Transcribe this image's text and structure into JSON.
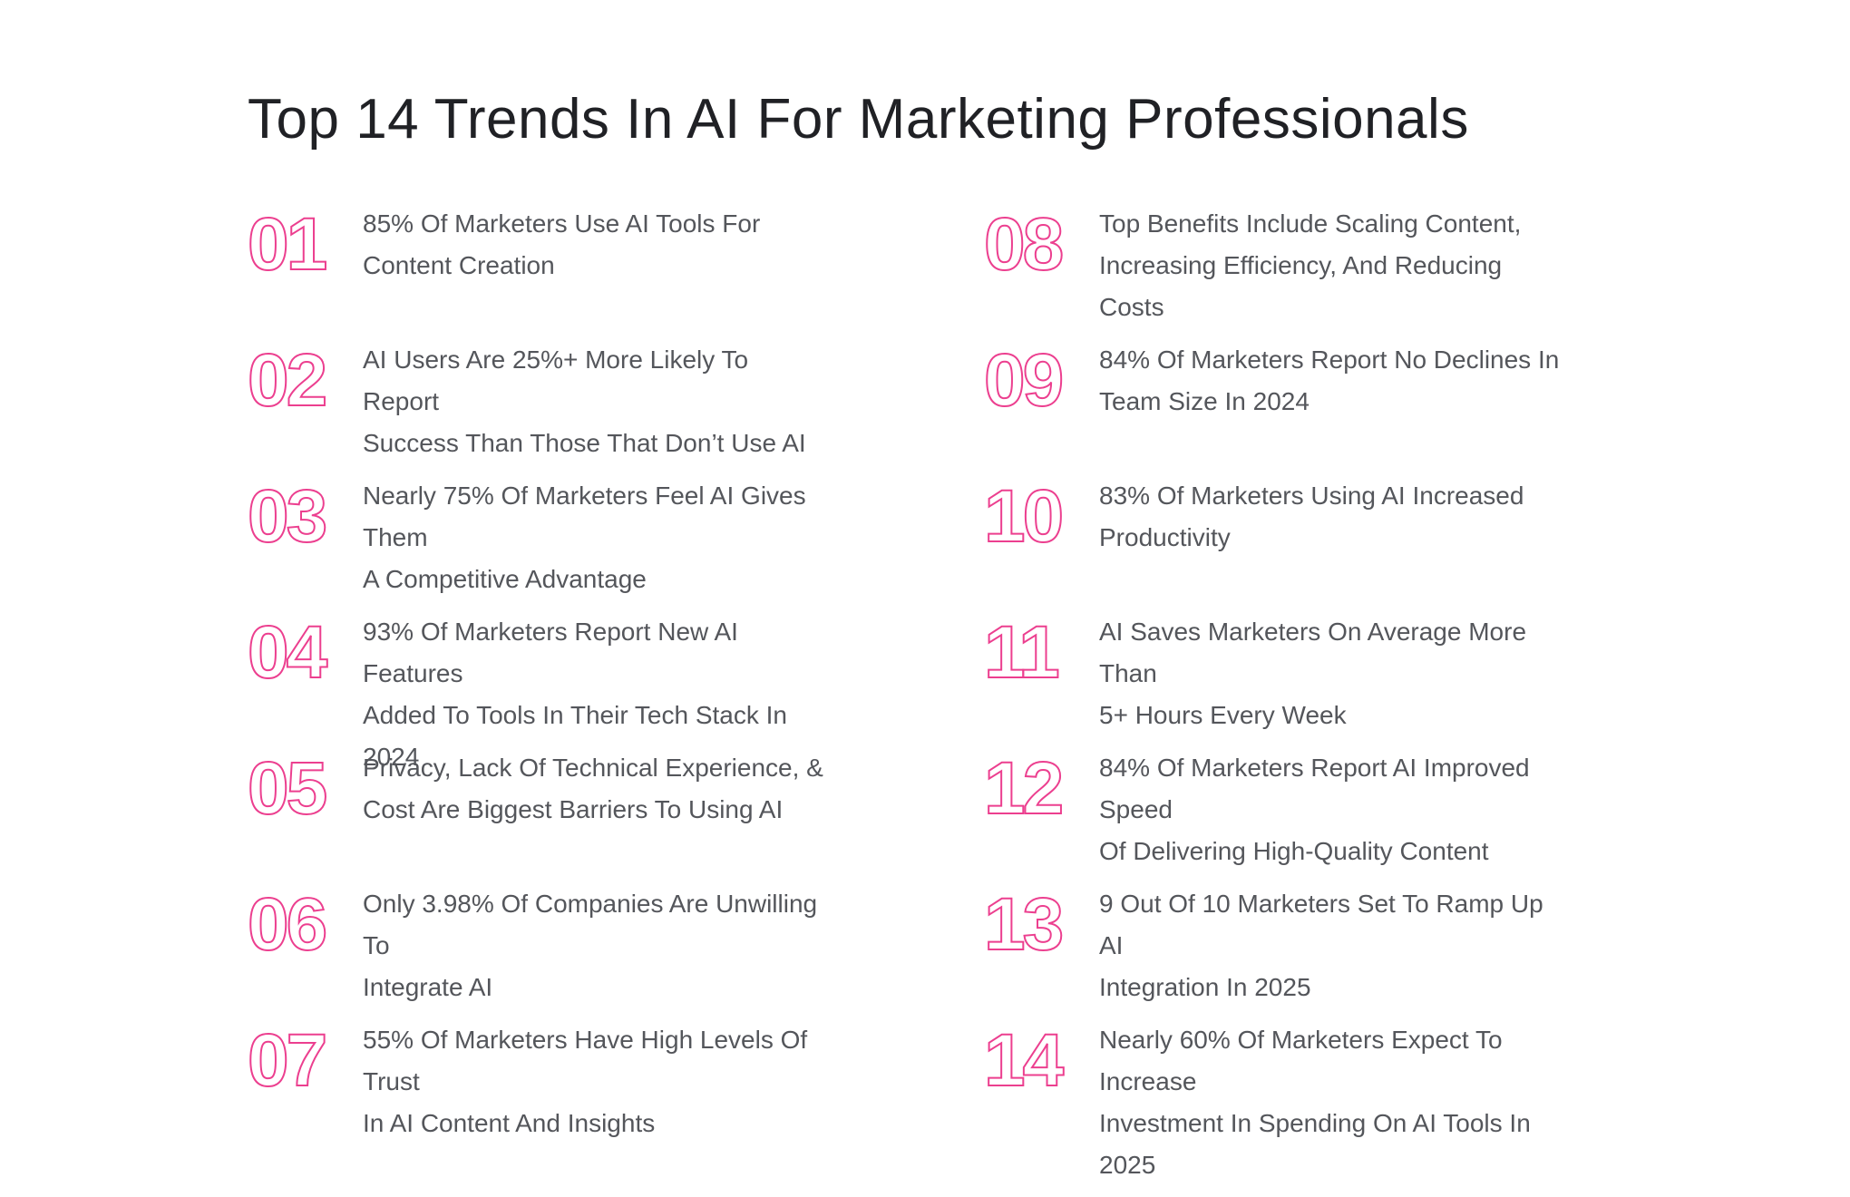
{
  "page": {
    "background": "#FFFFFF",
    "accent": "#EC3F8F",
    "body_text_color": "#54565B",
    "title_color": "#202125"
  },
  "title": "Top 14 Trends In AI For Marketing Professionals",
  "items": [
    {
      "number": "01",
      "line1": "85% Of Marketers Use AI Tools For",
      "line2": "Content Creation"
    },
    {
      "number": "02",
      "line1": "AI Users Are 25%+ More Likely To Report",
      "line2": "Success Than Those That Don’t Use AI"
    },
    {
      "number": "03",
      "line1": "Nearly 75% Of Marketers Feel AI Gives Them",
      "line2": "A Competitive Advantage"
    },
    {
      "number": "04",
      "line1": "93% Of Marketers Report New AI Features",
      "line2": "Added To Tools In Their Tech Stack In 2024"
    },
    {
      "number": "05",
      "line1": "Privacy, Lack Of Technical Experience, &",
      "line2": "Cost Are Biggest Barriers To Using AI"
    },
    {
      "number": "06",
      "line1": "Only 3.98% Of Companies Are Unwilling To",
      "line2": "Integrate AI"
    },
    {
      "number": "07",
      "line1": "55% Of Marketers Have High Levels Of Trust",
      "line2": "In AI Content And Insights"
    },
    {
      "number": "08",
      "line1": "Top Benefits Include Scaling Content,",
      "line2": "Increasing Efficiency, And Reducing Costs"
    },
    {
      "number": "09",
      "line1": "84% Of Marketers Report No Declines In",
      "line2": "Team Size In 2024"
    },
    {
      "number": "10",
      "line1": "83% Of Marketers Using AI Increased",
      "line2": "Productivity"
    },
    {
      "number": "11",
      "line1": "AI Saves Marketers On Average More Than",
      "line2": "5+ Hours Every Week"
    },
    {
      "number": "12",
      "line1": "84% Of Marketers Report AI Improved Speed",
      "line2": "Of Delivering High-Quality Content"
    },
    {
      "number": "13",
      "line1": "9 Out Of 10 Marketers Set To Ramp Up AI",
      "line2": "Integration In 2025"
    },
    {
      "number": "14",
      "line1": "Nearly 60% Of Marketers Expect To Increase",
      "line2": "Investment In Spending On AI Tools In 2025"
    }
  ]
}
